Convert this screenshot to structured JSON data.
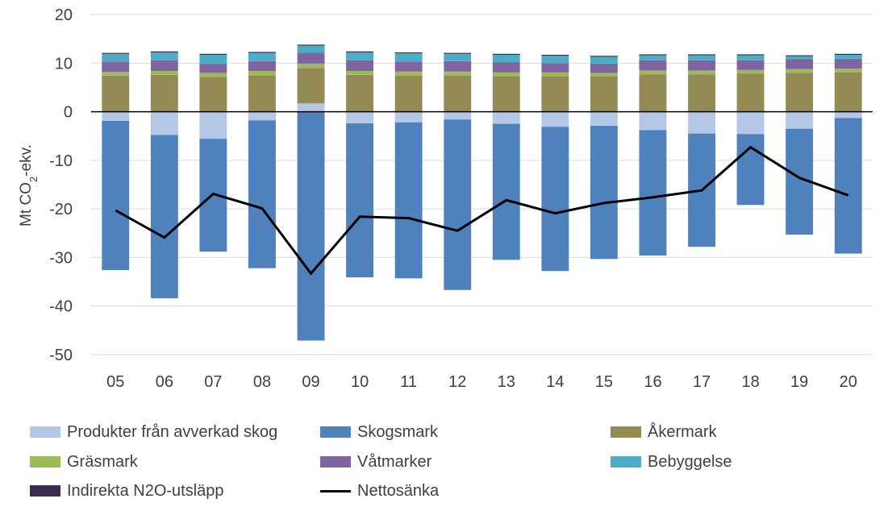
{
  "chart_data": {
    "type": "bar",
    "stacked": true,
    "ylabel_main": "Mt CO",
    "ylabel_sub": "2",
    "ylabel_tail": "-ekv.",
    "ylim": [
      -50,
      20
    ],
    "yticks": [
      20,
      10,
      0,
      -10,
      -20,
      -30,
      -40,
      -50
    ],
    "categories": [
      "05",
      "06",
      "07",
      "08",
      "09",
      "10",
      "11",
      "12",
      "13",
      "14",
      "15",
      "16",
      "17",
      "18",
      "19",
      "20"
    ],
    "series": [
      {
        "name": "Produkter från avverkad skog",
        "color": "#b4c7e7",
        "kind": "bar",
        "values": [
          -1.9,
          -4.8,
          -5.6,
          -1.8,
          1.7,
          -2.4,
          -2.2,
          -1.6,
          -2.5,
          -3.1,
          -2.9,
          -3.8,
          -4.5,
          -4.6,
          -3.5,
          -1.3
        ]
      },
      {
        "name": "Skogsmark",
        "color": "#4f81bd",
        "kind": "bar",
        "values": [
          -30.7,
          -33.6,
          -23.2,
          -30.4,
          -47.1,
          -31.7,
          -32.1,
          -35.1,
          -28.0,
          -29.7,
          -27.4,
          -25.8,
          -23.3,
          -14.6,
          -21.8,
          -27.9
        ]
      },
      {
        "name": "Åkermark",
        "color": "#948a54",
        "kind": "bar",
        "values": [
          7.4,
          7.6,
          7.2,
          7.5,
          7.3,
          7.6,
          7.5,
          7.5,
          7.3,
          7.3,
          7.3,
          7.7,
          7.7,
          7.8,
          8.0,
          8.1
        ]
      },
      {
        "name": "Gräsmark",
        "color": "#9bbb59",
        "kind": "bar",
        "values": [
          0.8,
          0.8,
          0.8,
          0.9,
          0.9,
          0.8,
          0.8,
          0.8,
          0.8,
          0.8,
          0.7,
          0.8,
          0.8,
          0.8,
          0.8,
          0.8
        ]
      },
      {
        "name": "Våtmarker",
        "color": "#8064a2",
        "kind": "bar",
        "values": [
          2.1,
          2.2,
          1.8,
          2.0,
          2.2,
          2.2,
          2.0,
          2.1,
          2.1,
          1.9,
          1.9,
          2.1,
          2.1,
          2.0,
          2.0,
          2.0
        ]
      },
      {
        "name": "Bebyggelse",
        "color": "#4bacc6",
        "kind": "bar",
        "values": [
          1.6,
          1.6,
          1.9,
          1.7,
          1.5,
          1.6,
          1.7,
          1.5,
          1.5,
          1.5,
          1.4,
          1.0,
          1.0,
          1.0,
          0.6,
          0.8
        ]
      },
      {
        "name": "Indirekta N2O-utsläpp",
        "color": "#3b2c4e",
        "kind": "bar",
        "values": [
          0.2,
          0.2,
          0.2,
          0.2,
          0.2,
          0.2,
          0.2,
          0.2,
          0.2,
          0.2,
          0.2,
          0.2,
          0.2,
          0.2,
          0.2,
          0.2
        ]
      },
      {
        "name": "Nettosänka",
        "color": "#000000",
        "kind": "line",
        "values": [
          -20.3,
          -25.9,
          -16.9,
          -19.9,
          -33.3,
          -21.6,
          -21.9,
          -24.5,
          -18.2,
          -20.9,
          -18.8,
          -17.6,
          -16.2,
          -7.3,
          -13.6,
          -17.2
        ]
      }
    ]
  }
}
